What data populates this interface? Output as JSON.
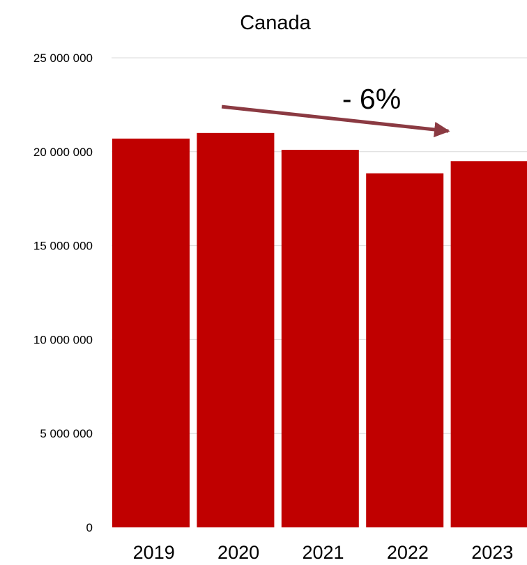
{
  "chart_data": {
    "type": "bar",
    "title": "Canada",
    "xlabel": "",
    "ylabel": "",
    "categories": [
      "2019",
      "2020",
      "2021",
      "2022",
      "2023"
    ],
    "values": [
      20700000,
      21000000,
      20100000,
      18850000,
      19500000
    ],
    "ylim": [
      0,
      25000000
    ],
    "yticks": [
      0,
      5000000,
      10000000,
      15000000,
      20000000,
      25000000
    ],
    "ytick_labels": [
      "0",
      "5 000 000",
      "10 000 000",
      "15 000 000",
      "20 000 000",
      "25 000 000"
    ],
    "grid": true,
    "legend": "none",
    "bar_color": "#c00000",
    "annotation": {
      "text": "- 6%",
      "arrow_color": "#8b3a42",
      "arrow_from": {
        "category": "2020",
        "value": 22400000
      },
      "arrow_to": {
        "category": "2023",
        "value": 21100000
      }
    }
  }
}
